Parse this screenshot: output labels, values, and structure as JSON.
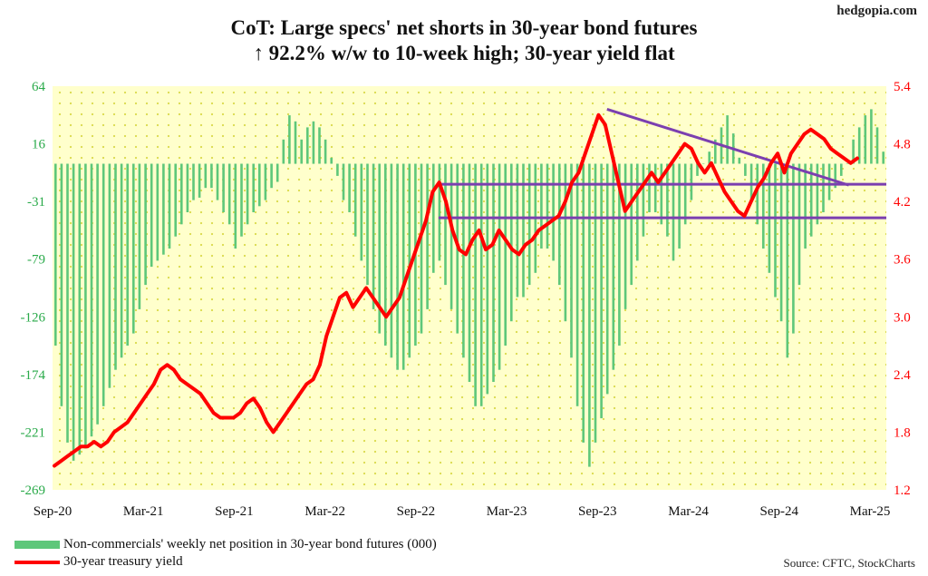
{
  "site": "hedgopia.com",
  "title_line1": "CoT: Large specs' net shorts in 30-year bond futures",
  "title_line2": "↑ 92.2% w/w to 10-week high; 30-year yield flat",
  "source": "Source: CFTC, StockCharts",
  "colors": {
    "bars": "#5ec77a",
    "line": "#ff0000",
    "trend": "#7b3fb0",
    "plot_bg": "#ffffcc",
    "dots": "#d9d94a",
    "left_axis": "#2aaa4a",
    "right_axis": "#ff0000"
  },
  "chart_data": {
    "type": "bar+line",
    "x_ticks": [
      "Sep-20",
      "Mar-21",
      "Sep-21",
      "Mar-22",
      "Sep-22",
      "Mar-23",
      "Sep-23",
      "Mar-24",
      "Sep-24",
      "Mar-25"
    ],
    "y_left": {
      "ticks": [
        "64",
        "16",
        "-31",
        "-79",
        "-126",
        "-174",
        "-221",
        "-269"
      ],
      "range": [
        -269,
        64
      ]
    },
    "y_right": {
      "ticks": [
        "5.4",
        "4.8",
        "4.2",
        "3.6",
        "3.0",
        "2.4",
        "1.8",
        "1.2"
      ],
      "range": [
        1.2,
        5.4
      ]
    },
    "series": [
      {
        "name": "Non-commercials' weekly net position in 30-year bond futures (000)",
        "type": "bar",
        "axis": "left",
        "x_start": "2020-09",
        "values": [
          -150,
          -200,
          -230,
          -245,
          -240,
          -235,
          -225,
          -215,
          -200,
          -185,
          -170,
          -160,
          -150,
          -140,
          -120,
          -100,
          -85,
          -80,
          -75,
          -70,
          -60,
          -50,
          -40,
          -30,
          -28,
          -20,
          -20,
          -30,
          -40,
          -50,
          -70,
          -60,
          -50,
          -40,
          -35,
          -30,
          -20,
          -15,
          20,
          40,
          35,
          20,
          30,
          35,
          30,
          20,
          5,
          -10,
          -30,
          -40,
          -60,
          -80,
          -100,
          -120,
          -140,
          -150,
          -160,
          -170,
          -170,
          -160,
          -150,
          -140,
          -120,
          -90,
          -80,
          -100,
          -120,
          -140,
          -160,
          -180,
          -200,
          -200,
          -190,
          -180,
          -170,
          -150,
          -130,
          -110,
          -110,
          -100,
          -90,
          -70,
          -70,
          -80,
          -100,
          -130,
          -160,
          -200,
          -230,
          -250,
          -230,
          -210,
          -190,
          -170,
          -150,
          -120,
          -100,
          -80,
          -60,
          -40,
          -40,
          -50,
          -60,
          -80,
          -70,
          -50,
          -30,
          -10,
          0,
          10,
          20,
          30,
          40,
          25,
          5,
          -10,
          -30,
          -50,
          -70,
          -90,
          -110,
          -130,
          -160,
          -140,
          -100,
          -70,
          -60,
          -50,
          -40,
          -30,
          -20,
          -10,
          0,
          20,
          30,
          40,
          45,
          30,
          10
        ],
        "note": "weekly series, approximate"
      },
      {
        "name": "30-year treasury yield",
        "type": "line",
        "axis": "right",
        "x_start": "2020-09",
        "values": [
          1.45,
          1.5,
          1.55,
          1.6,
          1.65,
          1.65,
          1.7,
          1.65,
          1.7,
          1.8,
          1.85,
          1.9,
          2.0,
          2.1,
          2.2,
          2.3,
          2.45,
          2.5,
          2.45,
          2.35,
          2.3,
          2.25,
          2.2,
          2.1,
          2.0,
          1.95,
          1.95,
          1.95,
          2.0,
          2.1,
          2.15,
          2.05,
          1.9,
          1.8,
          1.9,
          2.0,
          2.1,
          2.2,
          2.3,
          2.35,
          2.5,
          2.8,
          3.0,
          3.2,
          3.25,
          3.1,
          3.2,
          3.3,
          3.2,
          3.1,
          3.0,
          3.1,
          3.2,
          3.4,
          3.6,
          3.8,
          4.0,
          4.3,
          4.4,
          4.2,
          3.9,
          3.7,
          3.65,
          3.8,
          3.9,
          3.7,
          3.75,
          3.9,
          3.8,
          3.7,
          3.65,
          3.75,
          3.8,
          3.9,
          3.95,
          4.0,
          4.05,
          4.2,
          4.4,
          4.5,
          4.7,
          4.9,
          5.1,
          5.0,
          4.7,
          4.4,
          4.1,
          4.2,
          4.3,
          4.4,
          4.5,
          4.4,
          4.5,
          4.6,
          4.7,
          4.8,
          4.75,
          4.6,
          4.5,
          4.6,
          4.45,
          4.3,
          4.2,
          4.1,
          4.05,
          4.2,
          4.35,
          4.45,
          4.6,
          4.7,
          4.5,
          4.7,
          4.8,
          4.9,
          4.95,
          4.9,
          4.85,
          4.75,
          4.7,
          4.65,
          4.6,
          4.65
        ],
        "note": "weekly series, approximate"
      }
    ],
    "annotations": [
      {
        "type": "resistance",
        "level": 4.38
      },
      {
        "type": "support",
        "level": 4.03
      },
      {
        "type": "descending-trendline",
        "from_value": 5.16,
        "to_value": 4.37
      }
    ],
    "legend_position": "bottom-left",
    "grid": false
  }
}
